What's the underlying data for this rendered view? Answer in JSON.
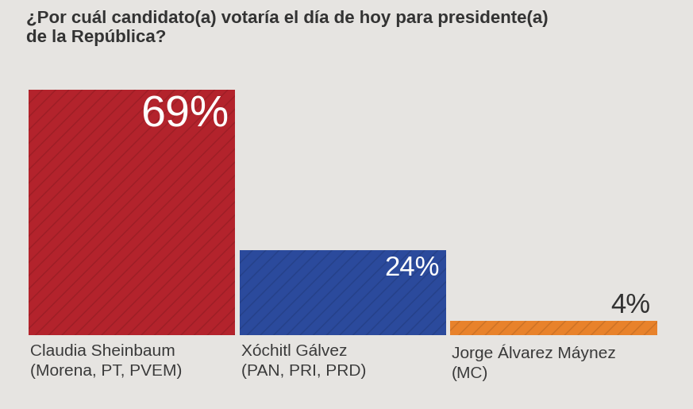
{
  "chart_data": {
    "type": "bar",
    "title": "¿Por cuál candidato(a) votaría el día de hoy para presidente(a)\nde la República?",
    "categories": [
      "Claudia Sheinbaum\n(Morena, PT, PVEM)",
      "Xóchitl Gálvez\n(PAN, PRI, PRD)",
      "Jorge Álvarez Máynez\n(MC)"
    ],
    "values": [
      69,
      24,
      4
    ],
    "value_labels": [
      "69%",
      "24%",
      "4%"
    ],
    "colors": [
      "#b3232c",
      "#2b4a9c",
      "#e8822b"
    ],
    "ylim": [
      0,
      69
    ],
    "data_labels": true,
    "tick_labels": "x",
    "grid": false
  }
}
